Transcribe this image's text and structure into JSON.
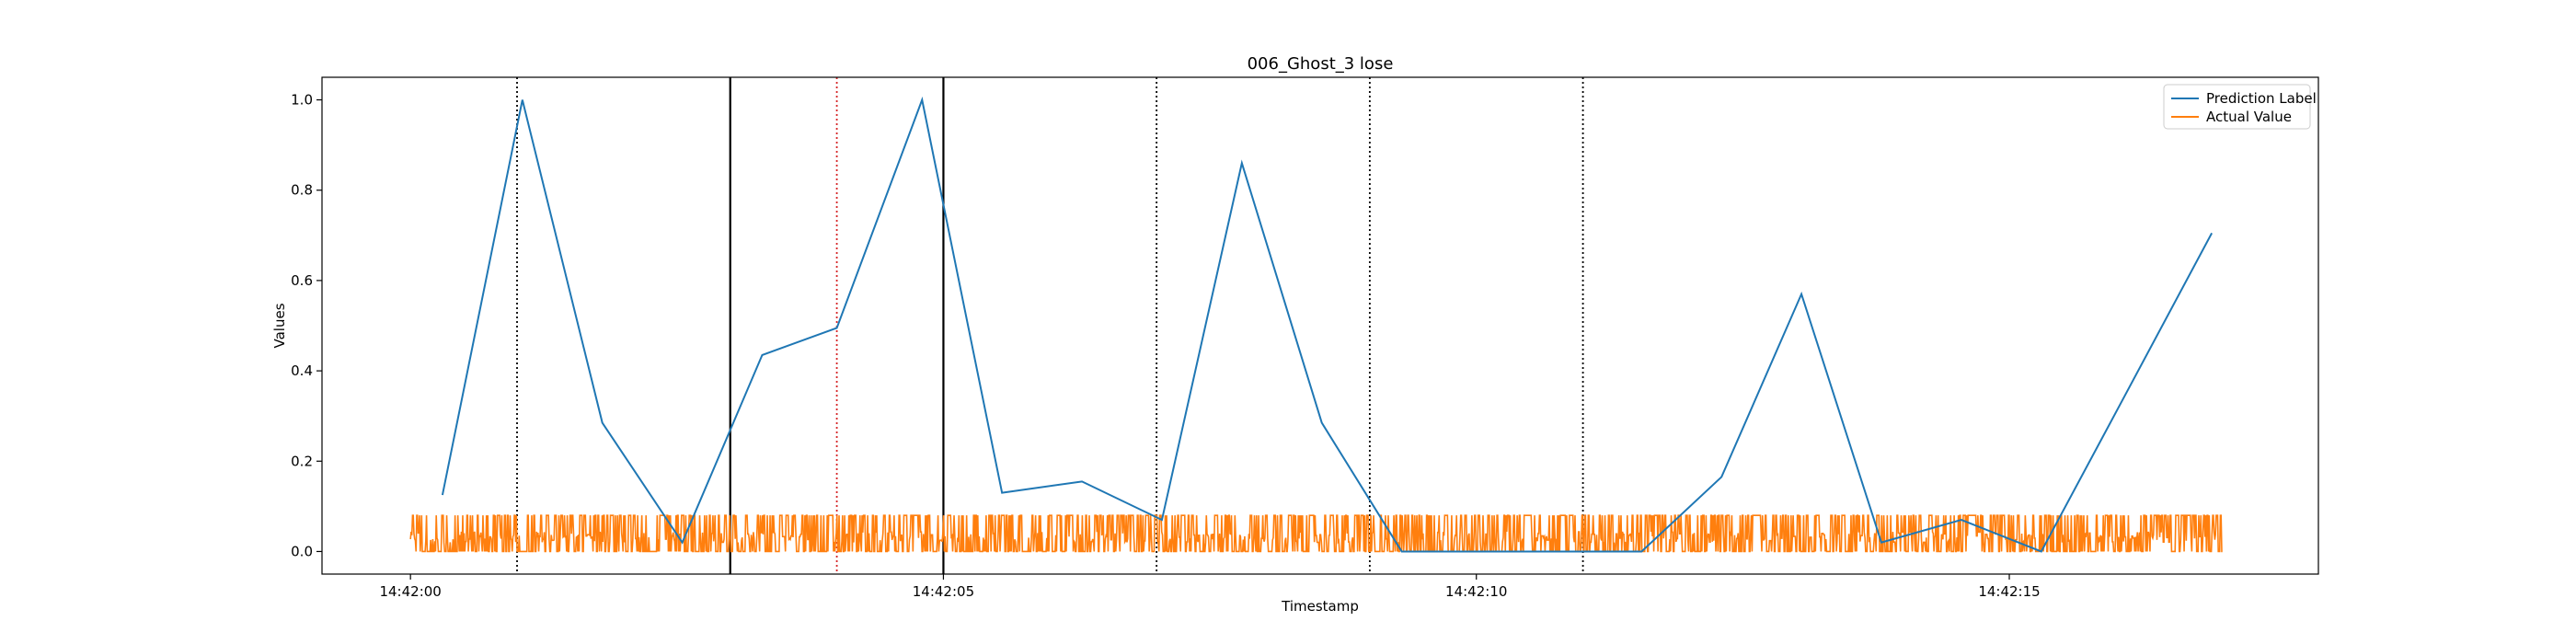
{
  "chart_data": {
    "type": "line",
    "title": "006_Ghost_3 lose",
    "xlabel": "Timestamp",
    "ylabel": "Values",
    "x_unit": "seconds after 14:42:00",
    "xlim": [
      -0.83,
      17.9
    ],
    "ylim": [
      -0.05,
      1.05
    ],
    "x_ticks": [
      {
        "value": 0,
        "label": "14:42:00"
      },
      {
        "value": 5,
        "label": "14:42:05"
      },
      {
        "value": 10,
        "label": "14:42:10"
      },
      {
        "value": 15,
        "label": "14:42:15"
      }
    ],
    "y_ticks": [
      {
        "value": 0.0,
        "label": "0.0"
      },
      {
        "value": 0.2,
        "label": "0.2"
      },
      {
        "value": 0.4,
        "label": "0.4"
      },
      {
        "value": 0.6,
        "label": "0.6"
      },
      {
        "value": 0.8,
        "label": "0.8"
      },
      {
        "value": 1.0,
        "label": "1.0"
      }
    ],
    "grid": false,
    "legend_position": "top-right",
    "series": [
      {
        "name": "Prediction Label",
        "color": "#1f77b4",
        "x": [
          0.3,
          1.05,
          1.8,
          2.55,
          3.3,
          4.0,
          4.8,
          5.55,
          6.3,
          7.05,
          7.8,
          8.55,
          9.3,
          10.05,
          10.8,
          11.55,
          12.3,
          13.05,
          13.8,
          14.55,
          15.3,
          16.05,
          16.9
        ],
        "y": [
          0.125,
          1.0,
          0.285,
          0.02,
          0.435,
          0.495,
          1.0,
          0.13,
          0.155,
          0.07,
          0.86,
          0.285,
          0.0,
          0.0,
          0.0,
          0.0,
          0.165,
          0.57,
          0.02,
          0.07,
          0.0,
          0.33,
          0.705
        ]
      },
      {
        "name": "Actual Value",
        "color": "#ff7f0e",
        "x_range": [
          0.0,
          17.0
        ],
        "levels": [
          0.0,
          0.08
        ]
      }
    ],
    "vertical_lines": [
      {
        "x": 1.0,
        "style": "dotted",
        "color": "#000000"
      },
      {
        "x": 3.0,
        "style": "solid",
        "color": "#000000"
      },
      {
        "x": 4.0,
        "style": "dotted",
        "color": "#d62728"
      },
      {
        "x": 5.0,
        "style": "solid",
        "color": "#000000"
      },
      {
        "x": 7.0,
        "style": "dotted",
        "color": "#000000"
      },
      {
        "x": 9.0,
        "style": "dotted",
        "color": "#000000"
      },
      {
        "x": 11.0,
        "style": "dotted",
        "color": "#000000"
      }
    ]
  }
}
